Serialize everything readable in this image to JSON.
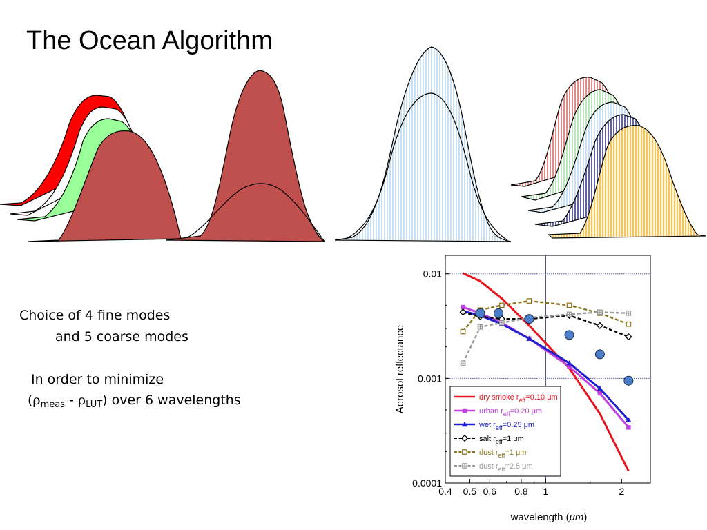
{
  "slide": {
    "title": "The Ocean Algorithm",
    "text_line1": "Choice  of  4 fine modes",
    "text_line2": "and 5 coarse modes",
    "text_line3": "In order to minimize",
    "rho_symbol": "ρ",
    "sub_meas": "meas",
    "sub_lut": "LUT",
    "text_line4_tail": ") over 6 wavelengths",
    "text_line4_open": "(",
    "text_line4_minus": " - "
  },
  "colors": {
    "red": "#ff0000",
    "green": "#99ff99",
    "brown": "#c0504d",
    "light_blue": "#a6cce8",
    "navy": "#1f1f7a",
    "orange": "#f0b030",
    "pink_red": "#d04040",
    "light_green": "#8fd68f"
  },
  "chart_data": {
    "type": "line",
    "xlabel_text": "wavelength (",
    "xlabel_unit": "μm",
    "xlabel_close": ")",
    "ylabel": "Aerosol reflectance",
    "x_scale": "log",
    "y_scale": "log",
    "xlim": [
      0.4,
      2.6
    ],
    "ylim": [
      0.0001,
      0.015
    ],
    "x_ticks": [
      {
        "value": 0.4,
        "label": "0.4"
      },
      {
        "value": 0.5,
        "label": "0.5"
      },
      {
        "value": 0.6,
        "label": "0.6"
      },
      {
        "value": 0.8,
        "label": "0.8"
      },
      {
        "value": 1,
        "label": "1"
      },
      {
        "value": 2,
        "label": "2"
      }
    ],
    "y_ticks": [
      {
        "value": 0.01,
        "label": "0.01"
      },
      {
        "value": 0.001,
        "label": "0.001"
      },
      {
        "value": 0.0001,
        "label": "0.0001"
      }
    ],
    "reference_lines": {
      "x": 1,
      "y": [
        0.01,
        0.001
      ]
    },
    "series": [
      {
        "name": "dry smoke r",
        "sub": "eff",
        "value_text": "=0.10 μm",
        "color": "#e8141e",
        "marker": "none",
        "dash": "solid",
        "points": [
          [
            0.47,
            0.0101
          ],
          [
            0.55,
            0.0085
          ],
          [
            0.67,
            0.0058
          ],
          [
            0.86,
            0.0032
          ],
          [
            1.24,
            0.00125
          ],
          [
            1.64,
            0.00046
          ],
          [
            2.13,
            0.00013
          ]
        ]
      },
      {
        "name": "urban r",
        "sub": "eff",
        "value_text": "=0.20 μm",
        "color": "#c040e0",
        "marker": "square",
        "dash": "solid",
        "points": [
          [
            0.47,
            0.0048
          ],
          [
            0.55,
            0.0042
          ],
          [
            0.67,
            0.0034
          ],
          [
            0.86,
            0.0024
          ],
          [
            1.24,
            0.0013
          ],
          [
            1.64,
            0.00072
          ],
          [
            2.13,
            0.00034
          ]
        ]
      },
      {
        "name": "wet  r",
        "sub": "eff",
        "value_text": "=0.25 μm",
        "color": "#2020cc",
        "marker": "triangle",
        "dash": "solid",
        "points": [
          [
            0.47,
            0.0044
          ],
          [
            0.55,
            0.004
          ],
          [
            0.67,
            0.0033
          ],
          [
            0.86,
            0.0024
          ],
          [
            1.24,
            0.0014
          ],
          [
            1.64,
            0.0008
          ],
          [
            2.13,
            0.0004
          ]
        ]
      },
      {
        "name": "salt r",
        "sub": "eff",
        "value_text": "=1 μm",
        "color": "#000000",
        "marker": "diamond",
        "dash": "dash",
        "points": [
          [
            0.47,
            0.0043
          ],
          [
            0.55,
            0.0039
          ],
          [
            0.67,
            0.0037
          ],
          [
            0.86,
            0.0037
          ],
          [
            1.24,
            0.004
          ],
          [
            1.64,
            0.0032
          ],
          [
            2.13,
            0.0025
          ]
        ]
      },
      {
        "name": "dust  r",
        "sub": "eff",
        "value_text": "=1 μm",
        "color": "#8a7420",
        "marker": "open-square",
        "dash": "dash",
        "points": [
          [
            0.47,
            0.0028
          ],
          [
            0.55,
            0.0045
          ],
          [
            0.67,
            0.005
          ],
          [
            0.86,
            0.0055
          ],
          [
            1.24,
            0.005
          ],
          [
            1.64,
            0.0042
          ],
          [
            2.13,
            0.0033
          ]
        ]
      },
      {
        "name": "dust  r",
        "sub": "eff",
        "value_text": "=2.5 μm",
        "color": "#9a9a9a",
        "marker": "crossed-square",
        "dash": "dash",
        "points": [
          [
            0.47,
            0.0014
          ],
          [
            0.55,
            0.0031
          ],
          [
            0.67,
            0.0034
          ],
          [
            0.86,
            0.0038
          ],
          [
            1.24,
            0.0041
          ],
          [
            1.64,
            0.0043
          ],
          [
            2.13,
            0.0042
          ]
        ]
      }
    ],
    "measured": {
      "color": "#4a7ec8",
      "points": [
        [
          0.55,
          0.0042
        ],
        [
          0.65,
          0.0042
        ],
        [
          0.86,
          0.0037
        ],
        [
          1.24,
          0.0026
        ],
        [
          1.64,
          0.0017
        ],
        [
          2.13,
          0.00095
        ]
      ]
    }
  }
}
